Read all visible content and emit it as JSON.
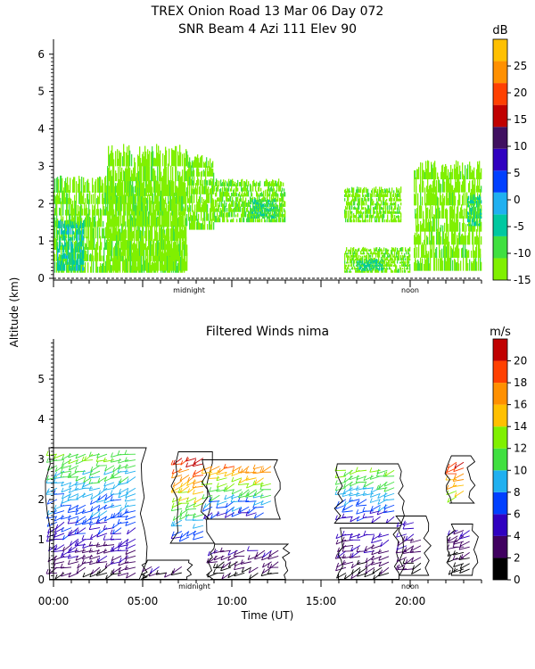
{
  "title_line1": "TREX Onion Road  13 Mar 06 Day 072",
  "title_line2": "SNR Beam 4 Azi 111 Elev 90",
  "ylabel": "Altitude (km)",
  "xlabel": "Time (UT)",
  "marker_midnight": "midnight",
  "marker_noon": "noon",
  "chart_data": [
    {
      "type": "heatmap",
      "title": "SNR Beam 4 Azi 111 Elev 90",
      "ylabel": "Altitude (km)",
      "y_ticks": [
        "0",
        "1",
        "2",
        "3",
        "4",
        "5",
        "6"
      ],
      "ylim": [
        0,
        6.4
      ],
      "xlim": [
        0,
        24
      ],
      "colorbar": {
        "unit": "dB",
        "ticks": [
          "25",
          "20",
          "15",
          "10",
          "5",
          "0",
          "-5",
          "-10",
          "-15"
        ],
        "range": [
          -15,
          30
        ],
        "colors": [
          "#80f000",
          "#40e040",
          "#00c8a0",
          "#20b0f0",
          "#0040ff",
          "#3000c0",
          "#401060",
          "#c00000",
          "#ff4000",
          "#ff9000",
          "#ffc000"
        ]
      },
      "echo_regions": [
        {
          "t_start": 0.0,
          "t_end": 7.4,
          "alt_low": 0.15,
          "alt_high": 2.6,
          "snr": -12
        },
        {
          "t_start": 0.2,
          "t_end": 1.7,
          "alt_low": 0.2,
          "alt_high": 1.5,
          "snr": -3
        },
        {
          "t_start": 3.0,
          "t_end": 7.5,
          "alt_low": 0.2,
          "alt_high": 3.4,
          "snr": -13
        },
        {
          "t_start": 7.5,
          "t_end": 9.0,
          "alt_low": 1.3,
          "alt_high": 3.2,
          "snr": -12
        },
        {
          "t_start": 9.0,
          "t_end": 13.0,
          "alt_low": 1.5,
          "alt_high": 2.6,
          "snr": -11
        },
        {
          "t_start": 11.0,
          "t_end": 12.5,
          "alt_low": 1.6,
          "alt_high": 2.1,
          "snr": -6
        },
        {
          "t_start": 16.3,
          "t_end": 20.0,
          "alt_low": 0.15,
          "alt_high": 0.8,
          "snr": -12
        },
        {
          "t_start": 17.0,
          "t_end": 18.5,
          "alt_low": 0.2,
          "alt_high": 0.5,
          "snr": -4
        },
        {
          "t_start": 16.3,
          "t_end": 19.5,
          "alt_low": 1.5,
          "alt_high": 2.4,
          "snr": -12
        },
        {
          "t_start": 20.2,
          "t_end": 24.0,
          "alt_low": 0.2,
          "alt_high": 3.0,
          "snr": -13
        },
        {
          "t_start": 23.2,
          "t_end": 24.0,
          "alt_low": 1.4,
          "alt_high": 2.2,
          "snr": -5
        }
      ]
    },
    {
      "type": "scatter",
      "title": "Filtered Winds nima",
      "ylabel": "Altitude (km)",
      "xlabel": "Time (UT)",
      "x_ticks": [
        "00:00",
        "05:00",
        "10:00",
        "15:00",
        "20:00"
      ],
      "y_ticks": [
        "0",
        "1",
        "2",
        "3",
        "4",
        "5"
      ],
      "ylim": [
        0,
        6
      ],
      "xlim": [
        0,
        24
      ],
      "colorbar": {
        "unit": "m/s",
        "ticks": [
          "20",
          "18",
          "16",
          "14",
          "12",
          "10",
          "8",
          "6",
          "4",
          "2",
          "0"
        ],
        "range": [
          0,
          22
        ],
        "colors": [
          "#000000",
          "#400060",
          "#3000c0",
          "#0040ff",
          "#20b0f0",
          "#40e040",
          "#80f000",
          "#ffc000",
          "#ff9000",
          "#ff4000",
          "#c00000"
        ]
      },
      "wind_groups": [
        {
          "t_start": 0.0,
          "t_end": 4.8,
          "alt_low": 0.1,
          "alt_high": 3.2,
          "speed_low": 2,
          "speed_high": 12
        },
        {
          "t_start": 5.3,
          "t_end": 7.4,
          "alt_low": 0.1,
          "alt_high": 0.4,
          "speed_low": 1,
          "speed_high": 4
        },
        {
          "t_start": 7.0,
          "t_end": 8.6,
          "alt_low": 1.0,
          "alt_high": 3.1,
          "speed_low": 6,
          "speed_high": 21
        },
        {
          "t_start": 8.7,
          "t_end": 12.4,
          "alt_low": 1.6,
          "alt_high": 2.9,
          "speed_low": 5,
          "speed_high": 18
        },
        {
          "t_start": 9.0,
          "t_end": 12.8,
          "alt_low": 0.1,
          "alt_high": 0.8,
          "speed_low": 1,
          "speed_high": 4
        },
        {
          "t_start": 16.2,
          "t_end": 19.3,
          "alt_low": 1.5,
          "alt_high": 2.8,
          "speed_low": 5,
          "speed_high": 13
        },
        {
          "t_start": 16.2,
          "t_end": 19.0,
          "alt_low": 0.1,
          "alt_high": 1.2,
          "speed_low": 1,
          "speed_high": 5
        },
        {
          "t_start": 19.6,
          "t_end": 20.8,
          "alt_low": 0.2,
          "alt_high": 1.5,
          "speed_low": 2,
          "speed_high": 5
        },
        {
          "t_start": 22.5,
          "t_end": 23.5,
          "alt_low": 0.2,
          "alt_high": 1.3,
          "speed_low": 1,
          "speed_high": 4
        },
        {
          "t_start": 22.4,
          "t_end": 23.2,
          "alt_low": 2.0,
          "alt_high": 3.0,
          "speed_low": 12,
          "speed_high": 21
        }
      ]
    }
  ]
}
